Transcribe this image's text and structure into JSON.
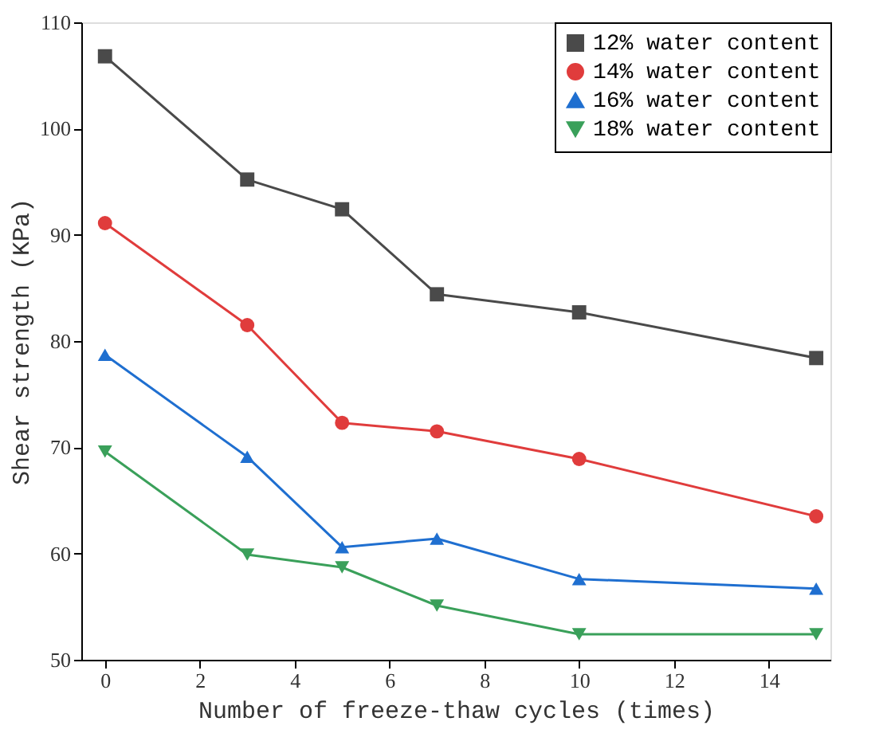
{
  "chart_data": {
    "type": "line",
    "xlabel": "Number of freeze-thaw cycles (times)",
    "ylabel": "Shear strength (KPa)",
    "x": [
      0,
      3,
      5,
      7,
      10,
      15
    ],
    "series": [
      {
        "name": "12% water content",
        "color": "#4a4a4a",
        "marker": "square",
        "values": [
          106.8,
          95.2,
          92.4,
          84.4,
          82.7,
          78.4
        ]
      },
      {
        "name": "14% water content",
        "color": "#e03c3c",
        "marker": "circle",
        "values": [
          91.1,
          81.5,
          72.3,
          71.5,
          68.9,
          63.5
        ]
      },
      {
        "name": "16% water content",
        "color": "#1f6fd0",
        "marker": "triangle",
        "values": [
          78.7,
          69.1,
          60.6,
          61.4,
          57.6,
          56.7
        ]
      },
      {
        "name": "18% water content",
        "color": "#3aa05a",
        "marker": "triangle-down",
        "values": [
          69.6,
          59.9,
          58.7,
          55.1,
          52.4,
          52.4
        ]
      }
    ],
    "xlim": [
      -0.5,
      15.3
    ],
    "xticks": [
      0,
      2,
      4,
      6,
      8,
      10,
      12,
      14
    ],
    "ylim": [
      50,
      110
    ],
    "yticks": [
      50,
      60,
      70,
      80,
      90,
      100,
      110
    ],
    "grid": false,
    "legend": "top right",
    "line_style": "solid"
  }
}
